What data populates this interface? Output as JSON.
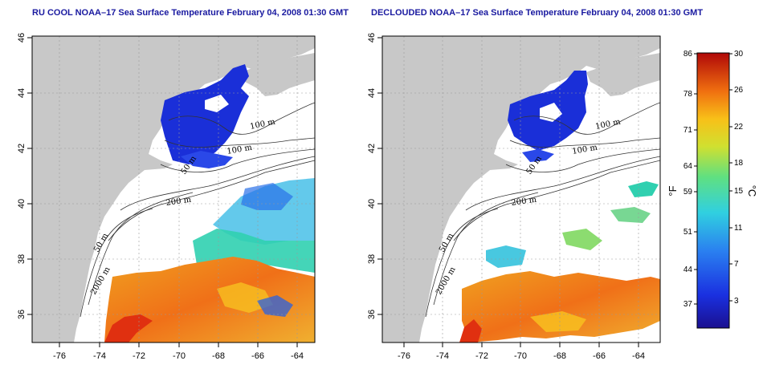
{
  "panels": [
    {
      "title": "RU COOL NOAA–17 Sea Surface Temperature February 04, 2008 01:30 GMT",
      "x_ticks": [
        "-76",
        "-74",
        "-72",
        "-70",
        "-68",
        "-66",
        "-64"
      ],
      "y_ticks": [
        "46",
        "44",
        "42",
        "40",
        "38",
        "36"
      ],
      "contour_labels": [
        "100 m",
        "100 m",
        "50 m",
        "200 m",
        "50 m",
        "2000 m"
      ]
    },
    {
      "title": "DECLOUDED NOAA–17 Sea Surface Temperature February 04, 2008 01:30 GMT",
      "x_ticks": [
        "-76",
        "-74",
        "-72",
        "-70",
        "-68",
        "-66",
        "-64"
      ],
      "y_ticks": [
        "46",
        "44",
        "42",
        "40",
        "38",
        "36"
      ],
      "contour_labels": [
        "100 m",
        "100 m",
        "50 m",
        "200 m",
        "50 m",
        "2000 m"
      ]
    }
  ],
  "colorbar": {
    "fahrenheit_labels": [
      "86",
      "78",
      "71",
      "64",
      "59",
      "51",
      "44",
      "37"
    ],
    "celsius_labels": [
      "30",
      "26",
      "22",
      "18",
      "15",
      "11",
      "7",
      "3"
    ],
    "fahrenheit_unit": "°F",
    "celsius_unit": "°C"
  },
  "colors": {
    "land": "#c8c8c8",
    "cold_water": "#1a2fd8",
    "warm_water": "#f07818",
    "hot_water": "#e03010",
    "title_text": "#1a1aa0"
  }
}
